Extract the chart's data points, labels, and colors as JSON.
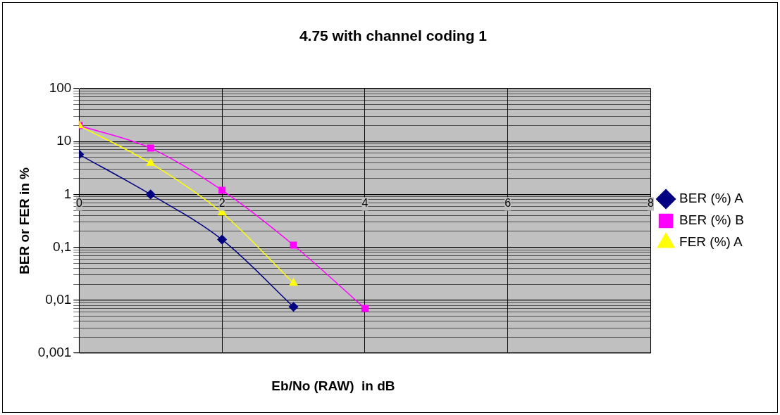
{
  "chart_data": {
    "type": "line",
    "title": "4.75 with channel coding 1",
    "xlabel": "Eb/No (RAW)  in dB",
    "ylabel": "BER or FER in %",
    "log": "y",
    "grid": true,
    "legend": "right",
    "xlim": [
      0,
      8
    ],
    "xticks": [
      0,
      2,
      4,
      6,
      8
    ],
    "ylim": [
      0.001,
      100
    ],
    "yticks": [
      {
        "value": 0.001,
        "label": "0,001"
      },
      {
        "value": 0.002,
        "label": null
      },
      {
        "value": 0.003,
        "label": null
      },
      {
        "value": 0.004,
        "label": null
      },
      {
        "value": 0.005,
        "label": null
      },
      {
        "value": 0.006,
        "label": null
      },
      {
        "value": 0.007,
        "label": null
      },
      {
        "value": 0.008,
        "label": null
      },
      {
        "value": 0.009,
        "label": null
      },
      {
        "value": 0.01,
        "label": "0,01"
      },
      {
        "value": 0.02,
        "label": null
      },
      {
        "value": 0.03,
        "label": null
      },
      {
        "value": 0.04,
        "label": null
      },
      {
        "value": 0.05,
        "label": null
      },
      {
        "value": 0.06,
        "label": null
      },
      {
        "value": 0.07,
        "label": null
      },
      {
        "value": 0.08,
        "label": null
      },
      {
        "value": 0.09,
        "label": null
      },
      {
        "value": 0.1,
        "label": "0,1"
      },
      {
        "value": 0.2,
        "label": null
      },
      {
        "value": 0.3,
        "label": null
      },
      {
        "value": 0.4,
        "label": null
      },
      {
        "value": 0.5,
        "label": null
      },
      {
        "value": 0.6,
        "label": null
      },
      {
        "value": 0.7,
        "label": null
      },
      {
        "value": 0.8,
        "label": null
      },
      {
        "value": 0.9,
        "label": null
      },
      1,
      {
        "value": 2,
        "label": null
      },
      {
        "value": 3,
        "label": null
      },
      {
        "value": 4,
        "label": null
      },
      {
        "value": 5,
        "label": null
      },
      {
        "value": 6,
        "label": null
      },
      {
        "value": 7,
        "label": null
      },
      {
        "value": 8,
        "label": null
      },
      {
        "value": 9,
        "label": null
      },
      10,
      {
        "value": 20,
        "label": null
      },
      {
        "value": 30,
        "label": null
      },
      {
        "value": 40,
        "label": null
      },
      {
        "value": 50,
        "label": null
      },
      {
        "value": 60,
        "label": null
      },
      {
        "value": 70,
        "label": null
      },
      {
        "value": 80,
        "label": null
      },
      {
        "value": 90,
        "label": null
      },
      100
    ],
    "series": [
      {
        "name": "BER (%) A",
        "color": "#000080",
        "marker": "diamond",
        "x": [
          0,
          1,
          2,
          3
        ],
        "values": [
          5.7,
          1.0,
          0.14,
          0.0075
        ]
      },
      {
        "name": "BER (%) B",
        "color": "#ff00ff",
        "marker": "square",
        "x": [
          0,
          1,
          2,
          3,
          4
        ],
        "values": [
          20,
          7.5,
          1.2,
          0.11,
          0.007
        ]
      },
      {
        "name": "FER (%) A",
        "color": "#ffff00",
        "marker": "triangle",
        "x": [
          0,
          1,
          2,
          3
        ],
        "values": [
          20,
          3.9,
          0.45,
          0.021
        ]
      }
    ]
  }
}
